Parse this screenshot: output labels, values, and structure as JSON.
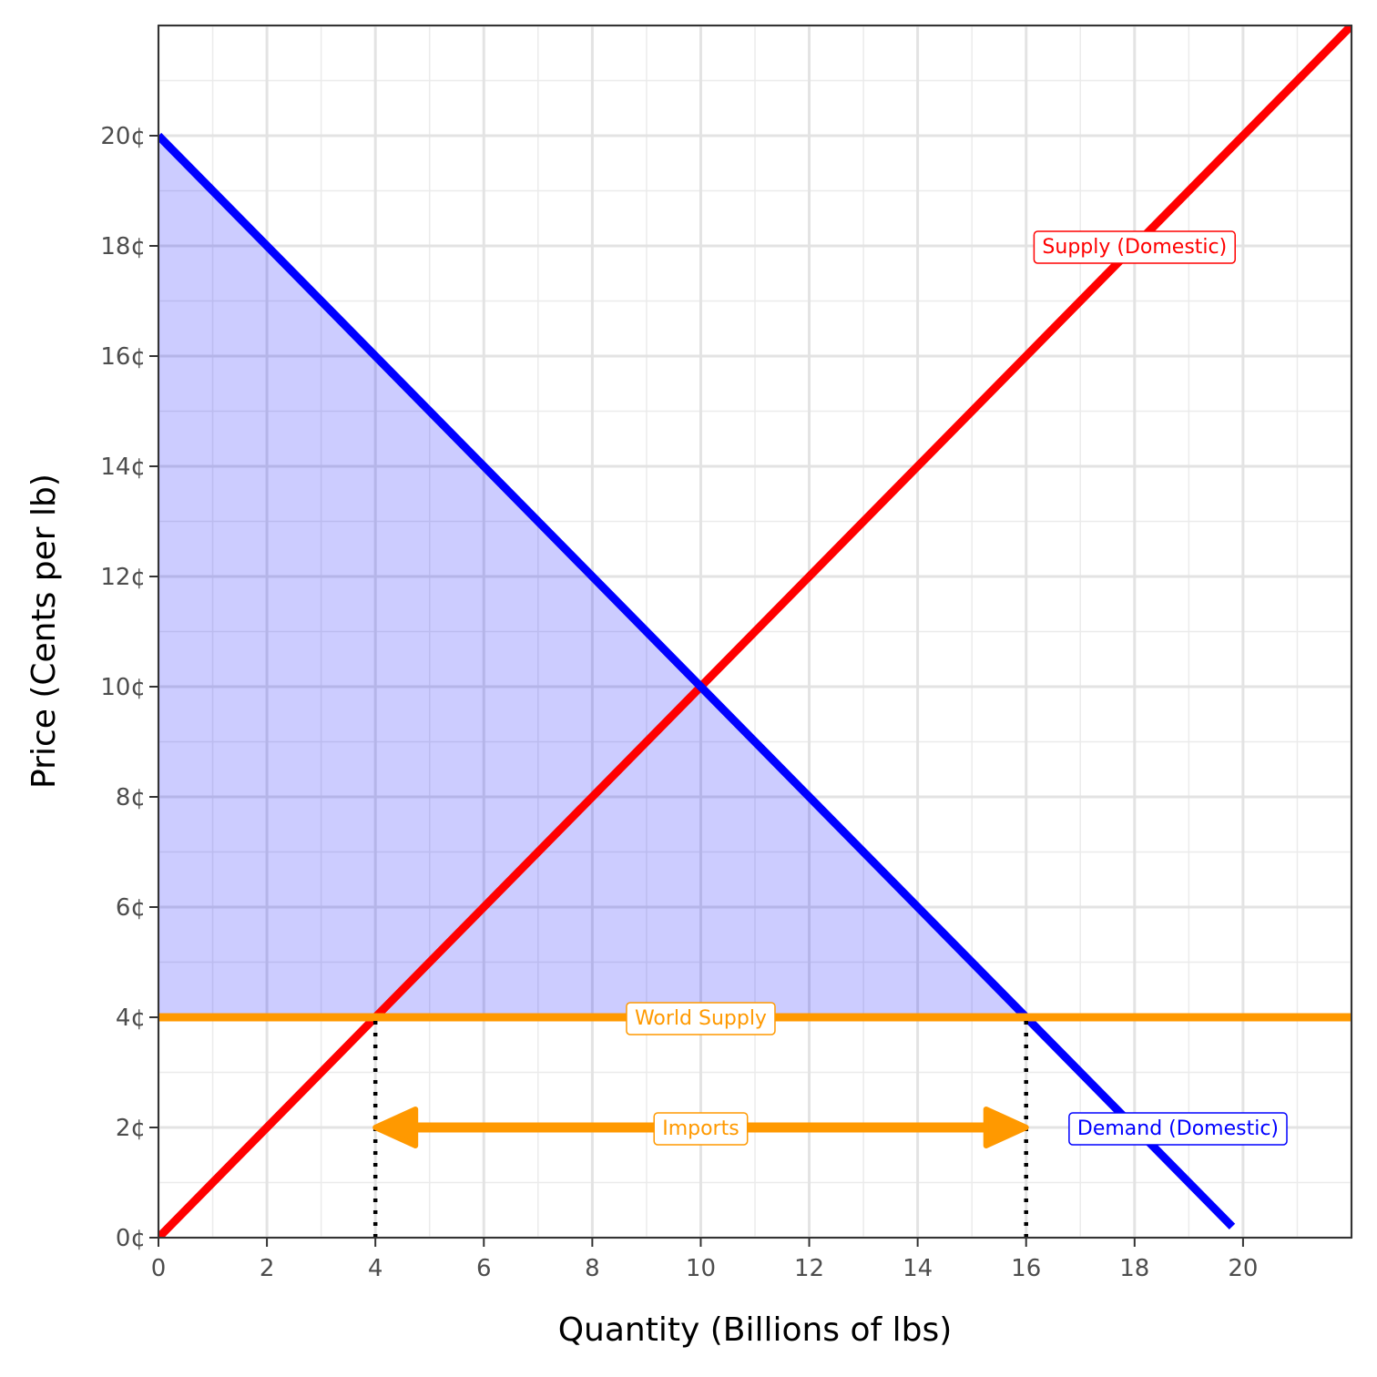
{
  "chart_data": {
    "type": "line",
    "xlabel": "Quantity (Billions of lbs)",
    "ylabel": "Price (Cents per lb)",
    "xlim": [
      0,
      22
    ],
    "ylim": [
      0,
      22
    ],
    "x_ticks": [
      0,
      2,
      4,
      6,
      8,
      10,
      12,
      14,
      16,
      18,
      20
    ],
    "x_tick_labels": [
      "0",
      "2",
      "4",
      "6",
      "8",
      "10",
      "12",
      "14",
      "16",
      "18",
      "20"
    ],
    "y_ticks": [
      0,
      2,
      4,
      6,
      8,
      10,
      12,
      14,
      16,
      18,
      20
    ],
    "y_tick_labels": [
      "0¢",
      "2¢",
      "4¢",
      "6¢",
      "8¢",
      "10¢",
      "12¢",
      "14¢",
      "16¢",
      "18¢",
      "20¢"
    ],
    "grid": true,
    "series": [
      {
        "name": "Supply (Domestic)",
        "color": "#ff0000",
        "x": [
          0,
          22
        ],
        "y": [
          0,
          22
        ]
      },
      {
        "name": "Demand (Domestic)",
        "color": "#0000ff",
        "x": [
          0,
          19.8
        ],
        "y": [
          20,
          0.2
        ]
      },
      {
        "name": "World Supply",
        "color": "#ff9900",
        "x": [
          0,
          22
        ],
        "y": [
          4,
          4
        ]
      }
    ],
    "shaded_region": {
      "color": "#0000ff",
      "opacity": 0.2,
      "x": [
        0,
        0,
        16
      ],
      "y": [
        4,
        20,
        4
      ]
    },
    "reference_lines": [
      {
        "x": [
          4,
          4
        ],
        "y": [
          0,
          4
        ]
      },
      {
        "x": [
          16,
          16
        ],
        "y": [
          0,
          4
        ]
      }
    ],
    "arrow": {
      "color": "#ff9900",
      "x_from": 4,
      "x_to": 16,
      "y": 2
    },
    "annotations": [
      {
        "text": "Supply (Domestic)",
        "x": 18,
        "y": 18,
        "color": "#ff0000"
      },
      {
        "text": "World Supply",
        "x": 10,
        "y": 4,
        "color": "#ff9900"
      },
      {
        "text": "Imports",
        "x": 10,
        "y": 2,
        "color": "#ff9900"
      },
      {
        "text": "Demand (Domestic)",
        "x": 18.8,
        "y": 2,
        "color": "#0000ff"
      }
    ]
  }
}
